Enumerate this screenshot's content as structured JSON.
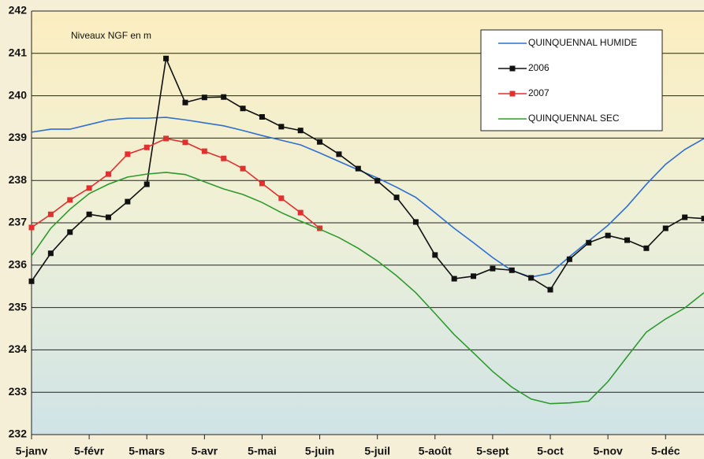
{
  "chart_data": {
    "type": "line",
    "annotation": "Niveaux NGF en m",
    "x": [
      0,
      1,
      2,
      3,
      4,
      5,
      6,
      7,
      8,
      9,
      10,
      11,
      12,
      13,
      14,
      15,
      16,
      17,
      18,
      19,
      20,
      21,
      22,
      23,
      24,
      25,
      26,
      27,
      28,
      29,
      30,
      31,
      32,
      33,
      34,
      35
    ],
    "xlim": [
      0,
      35
    ],
    "xticks": [
      {
        "value": 0,
        "label": "5-janv"
      },
      {
        "value": 3,
        "label": "5-févr"
      },
      {
        "value": 6,
        "label": "5-mars"
      },
      {
        "value": 9,
        "label": "5-avr"
      },
      {
        "value": 12,
        "label": "5-mai"
      },
      {
        "value": 15,
        "label": "5-juin"
      },
      {
        "value": 18,
        "label": "5-juil"
      },
      {
        "value": 21,
        "label": "5-août"
      },
      {
        "value": 24,
        "label": "5-sept"
      },
      {
        "value": 27,
        "label": "5-oct"
      },
      {
        "value": 30,
        "label": "5-nov"
      },
      {
        "value": 33,
        "label": "5-déc"
      }
    ],
    "ylim": [
      232,
      242
    ],
    "yticks": [
      232,
      233,
      234,
      235,
      236,
      237,
      238,
      239,
      240,
      241,
      242
    ],
    "grid": true,
    "legend": "upper right",
    "series": [
      {
        "name": "QUINQUENNAL HUMIDE",
        "color": "#2f6fd0",
        "marker": "none",
        "values": [
          239.14,
          239.21,
          239.21,
          239.32,
          239.43,
          239.47,
          239.47,
          239.49,
          239.43,
          239.36,
          239.29,
          239.18,
          239.06,
          238.95,
          238.84,
          238.65,
          238.45,
          238.25,
          238.06,
          237.84,
          237.6,
          237.24,
          236.87,
          236.53,
          236.18,
          235.87,
          235.72,
          235.81,
          236.2,
          236.57,
          236.94,
          237.39,
          237.91,
          238.38,
          238.73,
          238.99
        ]
      },
      {
        "name": "2006",
        "color": "#111111",
        "marker": "square",
        "values": [
          235.62,
          236.28,
          236.78,
          237.2,
          237.13,
          237.5,
          237.91,
          240.88,
          239.84,
          239.96,
          239.97,
          239.7,
          239.5,
          239.27,
          239.18,
          238.91,
          238.62,
          238.28,
          237.99,
          237.6,
          237.02,
          236.24,
          235.68,
          235.74,
          235.92,
          235.88,
          235.7,
          235.42,
          236.14,
          236.53,
          236.7,
          236.59,
          236.4,
          236.87,
          237.13,
          237.1
        ]
      },
      {
        "name": "2007",
        "color": "#e03030",
        "marker": "square",
        "values": [
          236.89,
          237.2,
          237.54,
          237.82,
          238.15,
          238.62,
          238.78,
          238.99,
          238.9,
          238.69,
          238.52,
          238.28,
          237.93,
          237.58,
          237.24,
          236.87,
          null,
          null,
          null,
          null,
          null,
          null,
          null,
          null,
          null,
          null,
          null,
          null,
          null,
          null,
          null,
          null,
          null,
          null,
          null,
          null
        ]
      },
      {
        "name": "QUINQUENNAL SEC",
        "color": "#2e9a2e",
        "marker": "none",
        "values": [
          236.22,
          236.87,
          237.32,
          237.69,
          237.91,
          238.08,
          238.15,
          238.19,
          238.14,
          237.97,
          237.8,
          237.67,
          237.48,
          237.24,
          237.04,
          236.85,
          236.65,
          236.4,
          236.1,
          235.75,
          235.35,
          234.86,
          234.36,
          233.93,
          233.49,
          233.12,
          232.84,
          232.73,
          232.75,
          232.79,
          233.25,
          233.84,
          234.42,
          234.73,
          234.99,
          235.35
        ]
      }
    ]
  }
}
